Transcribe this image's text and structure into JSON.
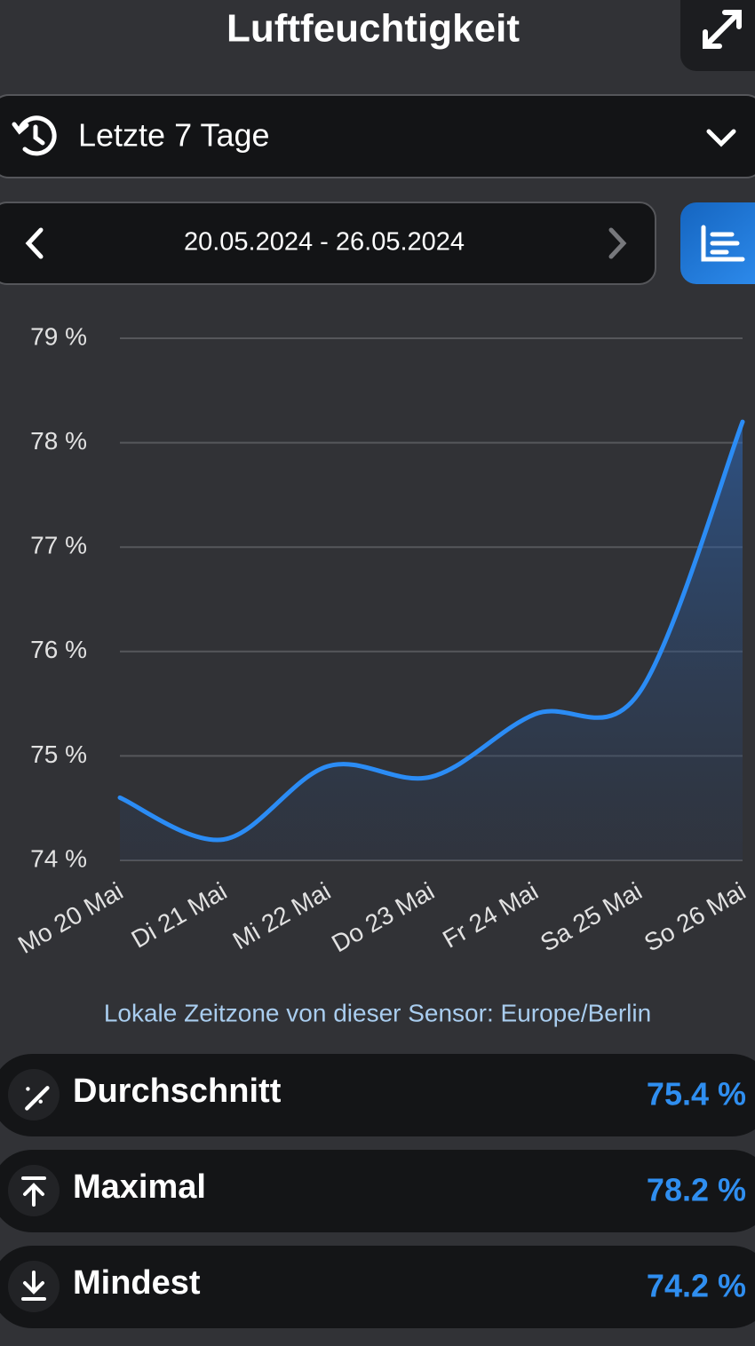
{
  "header": {
    "title": "Luftfeuchtigkeit"
  },
  "period": "Letzte 7 Tage",
  "date_range": "20.05.2024 - 26.05.2024",
  "chart_data": {
    "type": "line",
    "categories": [
      "Mo 20 Mai",
      "Di 21 Mai",
      "Mi 22 Mai",
      "Do 23 Mai",
      "Fr 24 Mai",
      "Sa 25 Mai",
      "So 26 Mai"
    ],
    "series": [
      {
        "name": "Luftfeuchtigkeit",
        "color": "#2b8cf5",
        "values": [
          74.6,
          74.2,
          74.9,
          74.8,
          75.4,
          75.6,
          78.2
        ]
      }
    ],
    "ylim": [
      74,
      79
    ],
    "yticks": [
      {
        "value": 74,
        "label": "74 %"
      },
      {
        "value": 75,
        "label": "75 %"
      },
      {
        "value": 76,
        "label": "76 %"
      },
      {
        "value": 77,
        "label": "77 %"
      },
      {
        "value": 78,
        "label": "78 %"
      },
      {
        "value": 79,
        "label": "79 %"
      }
    ],
    "grid": true,
    "area": true
  },
  "timezone_note": "Lokale Zeitzone von dieser Sensor: Europe/Berlin",
  "stats": [
    {
      "label": "Durchschnitt",
      "value": "75.4 %"
    },
    {
      "label": "Maximal",
      "value": "78.2 %"
    },
    {
      "label": "Mindest",
      "value": "74.2 %"
    }
  ]
}
